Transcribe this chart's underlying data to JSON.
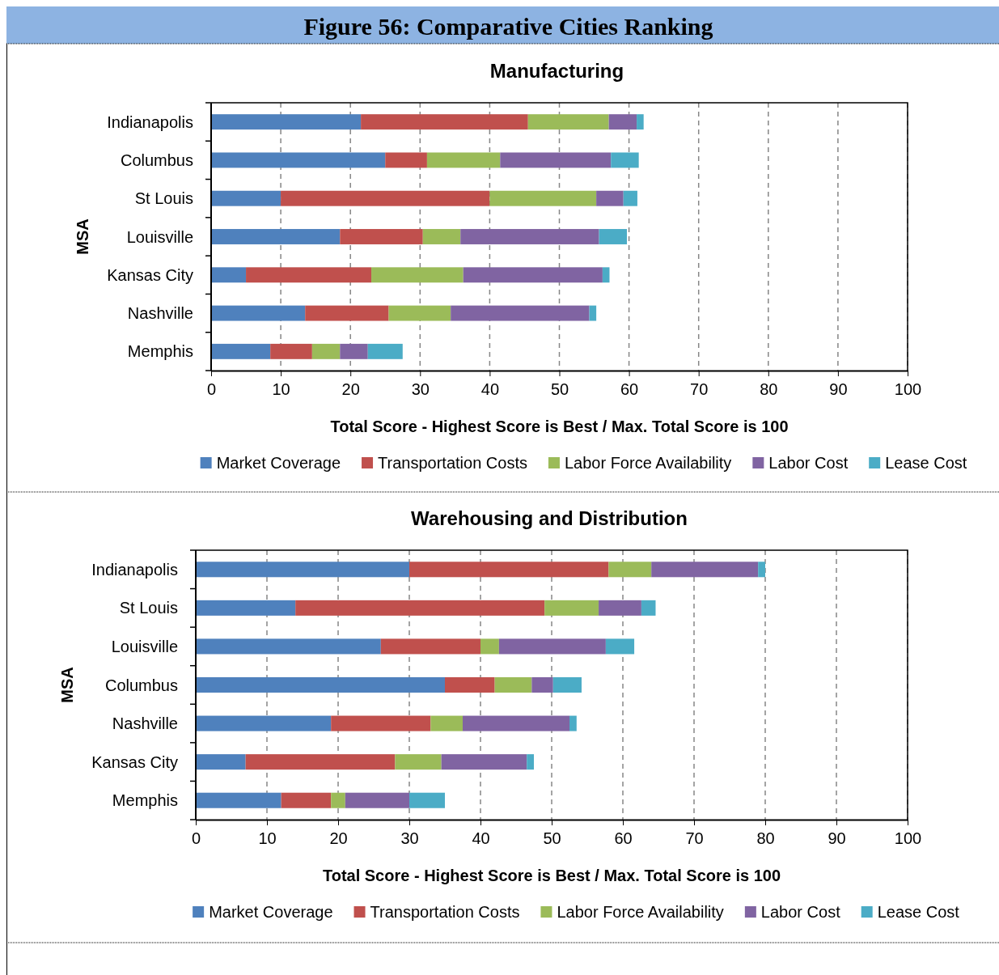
{
  "chart_data": [
    {
      "type": "bar",
      "orientation": "horizontal",
      "stacked": true,
      "title": "Figure 56: Comparative Cities Ranking",
      "subtitle": "Manufacturing",
      "xlabel": "Total Score - Highest Score is Best / Max. Total Score is 100",
      "ylabel": "MSA",
      "categories": [
        "Indianapolis",
        "Columbus",
        "St Louis",
        "Louisville",
        "Kansas City",
        "Nashville",
        "Memphis"
      ],
      "series": [
        {
          "name": "Market Coverage",
          "color": "#4f81bd",
          "values": [
            21.5,
            25.0,
            10.0,
            18.5,
            5.0,
            13.5,
            8.5
          ]
        },
        {
          "name": "Transportation Costs",
          "color": "#c0504d",
          "values": [
            24.0,
            6.0,
            30.0,
            11.9,
            18.0,
            12.0,
            6.0
          ]
        },
        {
          "name": "Labor Force Availability",
          "color": "#9bbb59",
          "values": [
            11.6,
            10.5,
            15.3,
            5.4,
            13.2,
            8.9,
            4.0
          ]
        },
        {
          "name": "Labor Cost",
          "color": "#8064a2",
          "values": [
            4.0,
            15.9,
            3.9,
            19.9,
            20.0,
            19.9,
            4.0
          ]
        },
        {
          "name": "Lease Cost",
          "color": "#4bacc6",
          "values": [
            1.0,
            4.0,
            2.0,
            4.0,
            1.0,
            1.0,
            5.0
          ]
        }
      ],
      "xlim": [
        0,
        100
      ],
      "xticks": [
        0,
        10,
        20,
        30,
        40,
        50,
        60,
        70,
        80,
        90,
        100
      ],
      "grid": "x",
      "legend": "bottom"
    },
    {
      "type": "bar",
      "orientation": "horizontal",
      "stacked": true,
      "title": "Warehousing and Distribution",
      "xlabel": "Total Score - Highest Score is Best / Max. Total Score is 100",
      "ylabel": "MSA",
      "categories": [
        "Indianapolis",
        "St Louis",
        "Louisville",
        "Columbus",
        "Nashville",
        "Kansas City",
        "Memphis"
      ],
      "series": [
        {
          "name": "Market Coverage",
          "color": "#4f81bd",
          "values": [
            30.0,
            14.0,
            26.0,
            35.0,
            19.0,
            7.0,
            12.0
          ]
        },
        {
          "name": "Transportation Costs",
          "color": "#c0504d",
          "values": [
            28.0,
            35.0,
            14.0,
            7.0,
            14.0,
            21.0,
            7.0
          ]
        },
        {
          "name": "Labor Force Availability",
          "color": "#9bbb59",
          "values": [
            6.0,
            7.6,
            2.6,
            5.2,
            4.5,
            6.5,
            2.0
          ]
        },
        {
          "name": "Labor Cost",
          "color": "#8064a2",
          "values": [
            15.0,
            6.0,
            15.0,
            3.0,
            15.0,
            12.0,
            9.0
          ]
        },
        {
          "name": "Lease Cost",
          "color": "#4bacc6",
          "values": [
            1.0,
            2.0,
            4.0,
            4.0,
            1.0,
            1.0,
            5.0
          ]
        }
      ],
      "xlim": [
        0,
        100
      ],
      "xticks": [
        0,
        10,
        20,
        30,
        40,
        50,
        60,
        70,
        80,
        90,
        100
      ],
      "grid": "x",
      "legend": "bottom"
    }
  ]
}
